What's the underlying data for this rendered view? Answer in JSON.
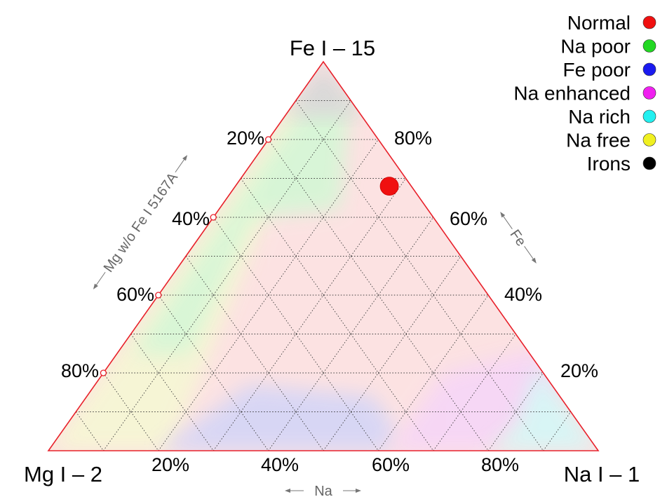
{
  "chart_data": {
    "type": "scatter",
    "subtype": "ternary",
    "vertices": {
      "top": "Fe I – 15",
      "left": "Mg I – 2",
      "right": "Na I – 1"
    },
    "axes": {
      "bottom": {
        "title": "Na",
        "ticks": [
          "20%",
          "40%",
          "60%",
          "80%"
        ]
      },
      "right": {
        "title": "Fe",
        "ticks": [
          "80%",
          "60%",
          "40%",
          "20%"
        ]
      },
      "left": {
        "title": "Mg w/o Fe I 5167A",
        "ticks": [
          "20%",
          "40%",
          "60%",
          "80%"
        ]
      }
    },
    "grid": true,
    "grid_step": 0.1,
    "outline_color": "#e8202a",
    "legend_position": "top-right",
    "legend": [
      {
        "name": "Normal",
        "color": "#f01010"
      },
      {
        "name": "Na poor",
        "color": "#22d822"
      },
      {
        "name": "Fe poor",
        "color": "#1a1af0"
      },
      {
        "name": "Na enhanced",
        "color": "#f020f0"
      },
      {
        "name": "Na rich",
        "color": "#22f0f0"
      },
      {
        "name": "Na free",
        "color": "#f0f020"
      },
      {
        "name": "Irons",
        "color": "#000000"
      }
    ],
    "regions": [
      {
        "class": "Irons",
        "color": "#d8d8d8"
      },
      {
        "class": "Normal",
        "color": "#fbd8d8"
      },
      {
        "class": "Na poor",
        "color": "#d6f6d6"
      },
      {
        "class": "Fe poor",
        "color": "#d6d6f6"
      },
      {
        "class": "Na enhanced",
        "color": "#f6d6f6"
      },
      {
        "class": "Na rich",
        "color": "#d6f6f6"
      },
      {
        "class": "Na free",
        "color": "#f6f6d4"
      }
    ],
    "points": [
      {
        "name": "Normal",
        "color": "#f01010",
        "na": 0.28,
        "fe": 0.68,
        "mg": 0.04
      }
    ]
  }
}
